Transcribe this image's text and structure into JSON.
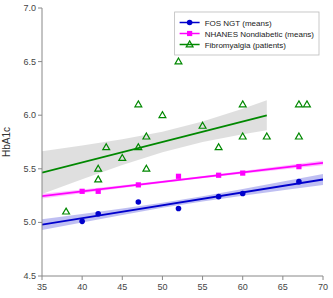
{
  "chart_data": {
    "type": "scatter",
    "ylabel": "HbA1c",
    "xlim": [
      35,
      70
    ],
    "ylim": [
      4.5,
      7.0
    ],
    "xticks": [
      35,
      40,
      45,
      50,
      55,
      60,
      65,
      70
    ],
    "yticks": [
      4.5,
      {
        "value": 5,
        "label": "5.0"
      },
      5.5,
      {
        "value": 6,
        "label": "6.0"
      },
      6.5,
      {
        "value": 7,
        "label": "7.0"
      }
    ],
    "grid": false,
    "legend": "upper right",
    "series": [
      {
        "type": "band",
        "color": "#808080",
        "x": [
          35,
          40,
          45,
          50,
          55,
          60,
          63
        ],
        "lower": [
          5.2654,
          5.4036,
          5.5359,
          5.6551,
          5.7508,
          5.8228,
          5.859
        ],
        "upper": [
          5.6644,
          5.7168,
          5.7752,
          5.8466,
          5.9415,
          6.0601,
          6.1383
        ]
      },
      {
        "type": "band",
        "color": "#0000cc",
        "x": [
          35,
          40,
          45,
          50,
          55,
          60,
          65,
          70
        ],
        "lower": [
          4.9291,
          5.0002,
          5.0697,
          5.1355,
          5.1951,
          5.2488,
          5.2991,
          5.348
        ],
        "upper": [
          5.0303,
          5.0794,
          5.1301,
          5.1844,
          5.245,
          5.3115,
          5.3813,
          5.4526
        ]
      },
      {
        "type": "band",
        "color": "#ff00ff",
        "x": [
          35,
          40,
          45,
          50,
          55,
          60,
          65,
          70
        ],
        "lower": [
          5.2241,
          5.273,
          5.3212,
          5.3678,
          5.4118,
          5.4533,
          5.4934,
          5.5328
        ],
        "upper": [
          5.2671,
          5.3066,
          5.3468,
          5.3886,
          5.433,
          5.4799,
          5.5283,
          5.5772
        ]
      },
      {
        "type": "line",
        "color": "#0000cc",
        "line_style": "solid",
        "x": [
          35,
          70
        ],
        "values": [
          4.9797,
          5.4003
        ]
      },
      {
        "type": "line",
        "color": "#ff00ff",
        "line_style": "solid",
        "x": [
          35,
          70
        ],
        "values": [
          5.2456,
          5.555
        ]
      },
      {
        "type": "line",
        "color": "#008800",
        "line_style": "solid",
        "x": [
          35,
          63
        ],
        "values": [
          5.4649,
          5.9987
        ]
      },
      {
        "type": "scatter",
        "name": "FOS NGT (means)",
        "color": "#0000cc",
        "marker": "circle",
        "x": [
          40,
          42,
          47,
          52,
          57,
          60,
          67
        ],
        "values": [
          5.01,
          5.08,
          5.19,
          5.13,
          5.24,
          5.27,
          5.38
        ]
      },
      {
        "type": "scatter",
        "name": "NHANES Nondiabetic (means)",
        "color": "#ff00ff",
        "marker": "square",
        "x": [
          40,
          42,
          47,
          52,
          57,
          60,
          67
        ],
        "values": [
          5.29,
          5.29,
          5.35,
          5.43,
          5.44,
          5.46,
          5.52
        ]
      },
      {
        "type": "scatter",
        "name": "Fibromyalgia (patients)",
        "color": "#008800",
        "marker": "triangle-open",
        "x": [
          38,
          42,
          42,
          43,
          45,
          47,
          47,
          48,
          48,
          50,
          52,
          55,
          57,
          60,
          60,
          63,
          67,
          67,
          68
        ],
        "values": [
          5.1,
          5.5,
          5.4,
          5.7,
          5.6,
          5.7,
          6.1,
          5.5,
          5.8,
          6.0,
          6.5,
          5.9,
          5.7,
          6.1,
          5.8,
          5.8,
          6.1,
          5.8,
          6.1
        ]
      }
    ]
  }
}
